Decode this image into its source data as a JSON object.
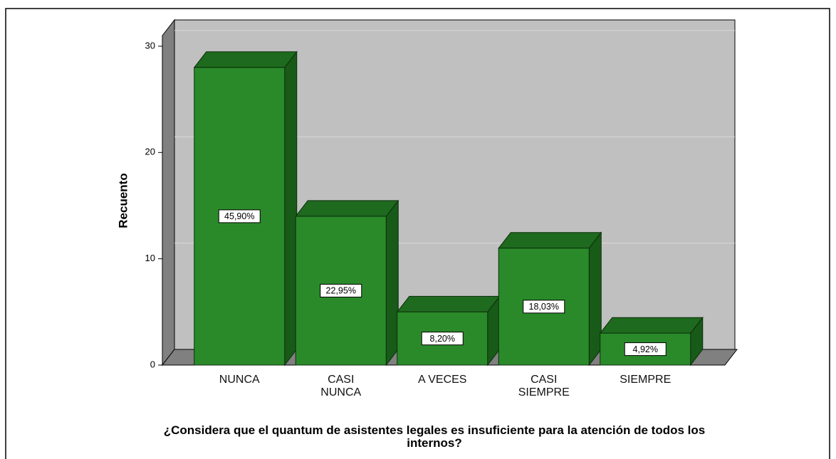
{
  "chart_data": {
    "type": "bar3d",
    "title": "¿Considera que el quantum de asistentes legales es insuficiente para la atención de todos los internos?",
    "ylabel": "Recuento",
    "categories": [
      "NUNCA",
      "CASI NUNCA",
      "A VECES",
      "CASI SIEMPRE",
      "SIEMPRE"
    ],
    "values": [
      28,
      14,
      5,
      11,
      3
    ],
    "percent_values": [
      45.9,
      22.95,
      8.2,
      18.03,
      4.92
    ],
    "percent_labels": [
      "45,90%",
      "22,95%",
      "8,20%",
      "18,03%",
      "4,92%"
    ],
    "color": "#2a8a2a",
    "ylim": [
      0,
      31
    ],
    "yticks": [
      0,
      10,
      20,
      30
    ],
    "grid": true
  }
}
